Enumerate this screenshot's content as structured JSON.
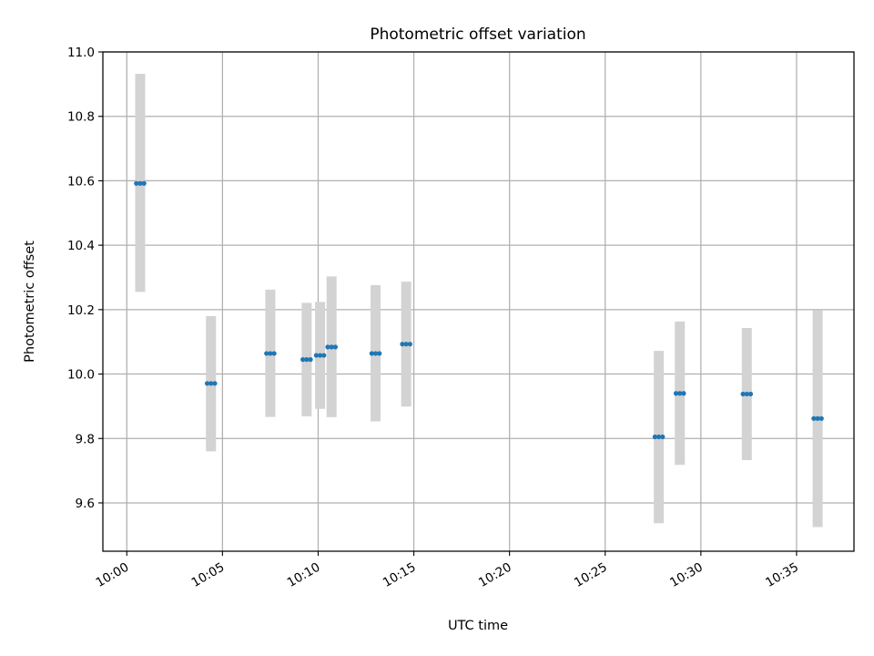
{
  "chart_data": {
    "type": "scatter",
    "title": "Photometric offset variation",
    "xlabel": "UTC time",
    "ylabel": "Photometric offset",
    "grid": true,
    "x_ticks": [
      "10:00",
      "10:05",
      "10:10",
      "10:15",
      "10:20",
      "10:25",
      "10:30",
      "10:35"
    ],
    "y_ticks": [
      "9.6",
      "9.8",
      "10.0",
      "10.2",
      "10.4",
      "10.6",
      "10.8",
      "11.0"
    ],
    "xlim": [
      "09:58:45",
      "10:38:00"
    ],
    "ylim": [
      9.45,
      11.0
    ],
    "colors": {
      "points": "#1f77b4",
      "errorbars": "#d3d3d3",
      "grid": "#b0b0b0"
    },
    "points": [
      {
        "x": [
          "10:00:30",
          "10:00:54"
        ],
        "y": 10.592,
        "lower": 10.255,
        "upper": 10.932
      },
      {
        "x": [
          "10:04:12",
          "10:04:36"
        ],
        "y": 9.971,
        "lower": 9.76,
        "upper": 10.18
      },
      {
        "x": [
          "10:07:18",
          "10:07:42"
        ],
        "y": 10.064,
        "lower": 9.867,
        "upper": 10.262
      },
      {
        "x": [
          "10:09:12",
          "10:09:36"
        ],
        "y": 10.045,
        "lower": 9.869,
        "upper": 10.221
      },
      {
        "x": [
          "10:09:54",
          "10:10:18"
        ],
        "y": 10.058,
        "lower": 9.892,
        "upper": 10.224
      },
      {
        "x": [
          "10:10:30",
          "10:10:54"
        ],
        "y": 10.084,
        "lower": 9.866,
        "upper": 10.303
      },
      {
        "x": [
          "10:12:48",
          "10:13:12"
        ],
        "y": 10.064,
        "lower": 9.853,
        "upper": 10.276
      },
      {
        "x": [
          "10:14:24",
          "10:14:48"
        ],
        "y": 10.093,
        "lower": 9.899,
        "upper": 10.287
      },
      {
        "x": [
          "10:27:36",
          "10:28:00"
        ],
        "y": 9.805,
        "lower": 9.537,
        "upper": 10.072
      },
      {
        "x": [
          "10:28:42",
          "10:29:06"
        ],
        "y": 9.94,
        "lower": 9.718,
        "upper": 10.163
      },
      {
        "x": [
          "10:32:12",
          "10:32:36"
        ],
        "y": 9.938,
        "lower": 9.733,
        "upper": 10.143
      },
      {
        "x": [
          "10:35:54",
          "10:36:18"
        ],
        "y": 9.862,
        "lower": 9.525,
        "upper": 10.199
      }
    ]
  }
}
